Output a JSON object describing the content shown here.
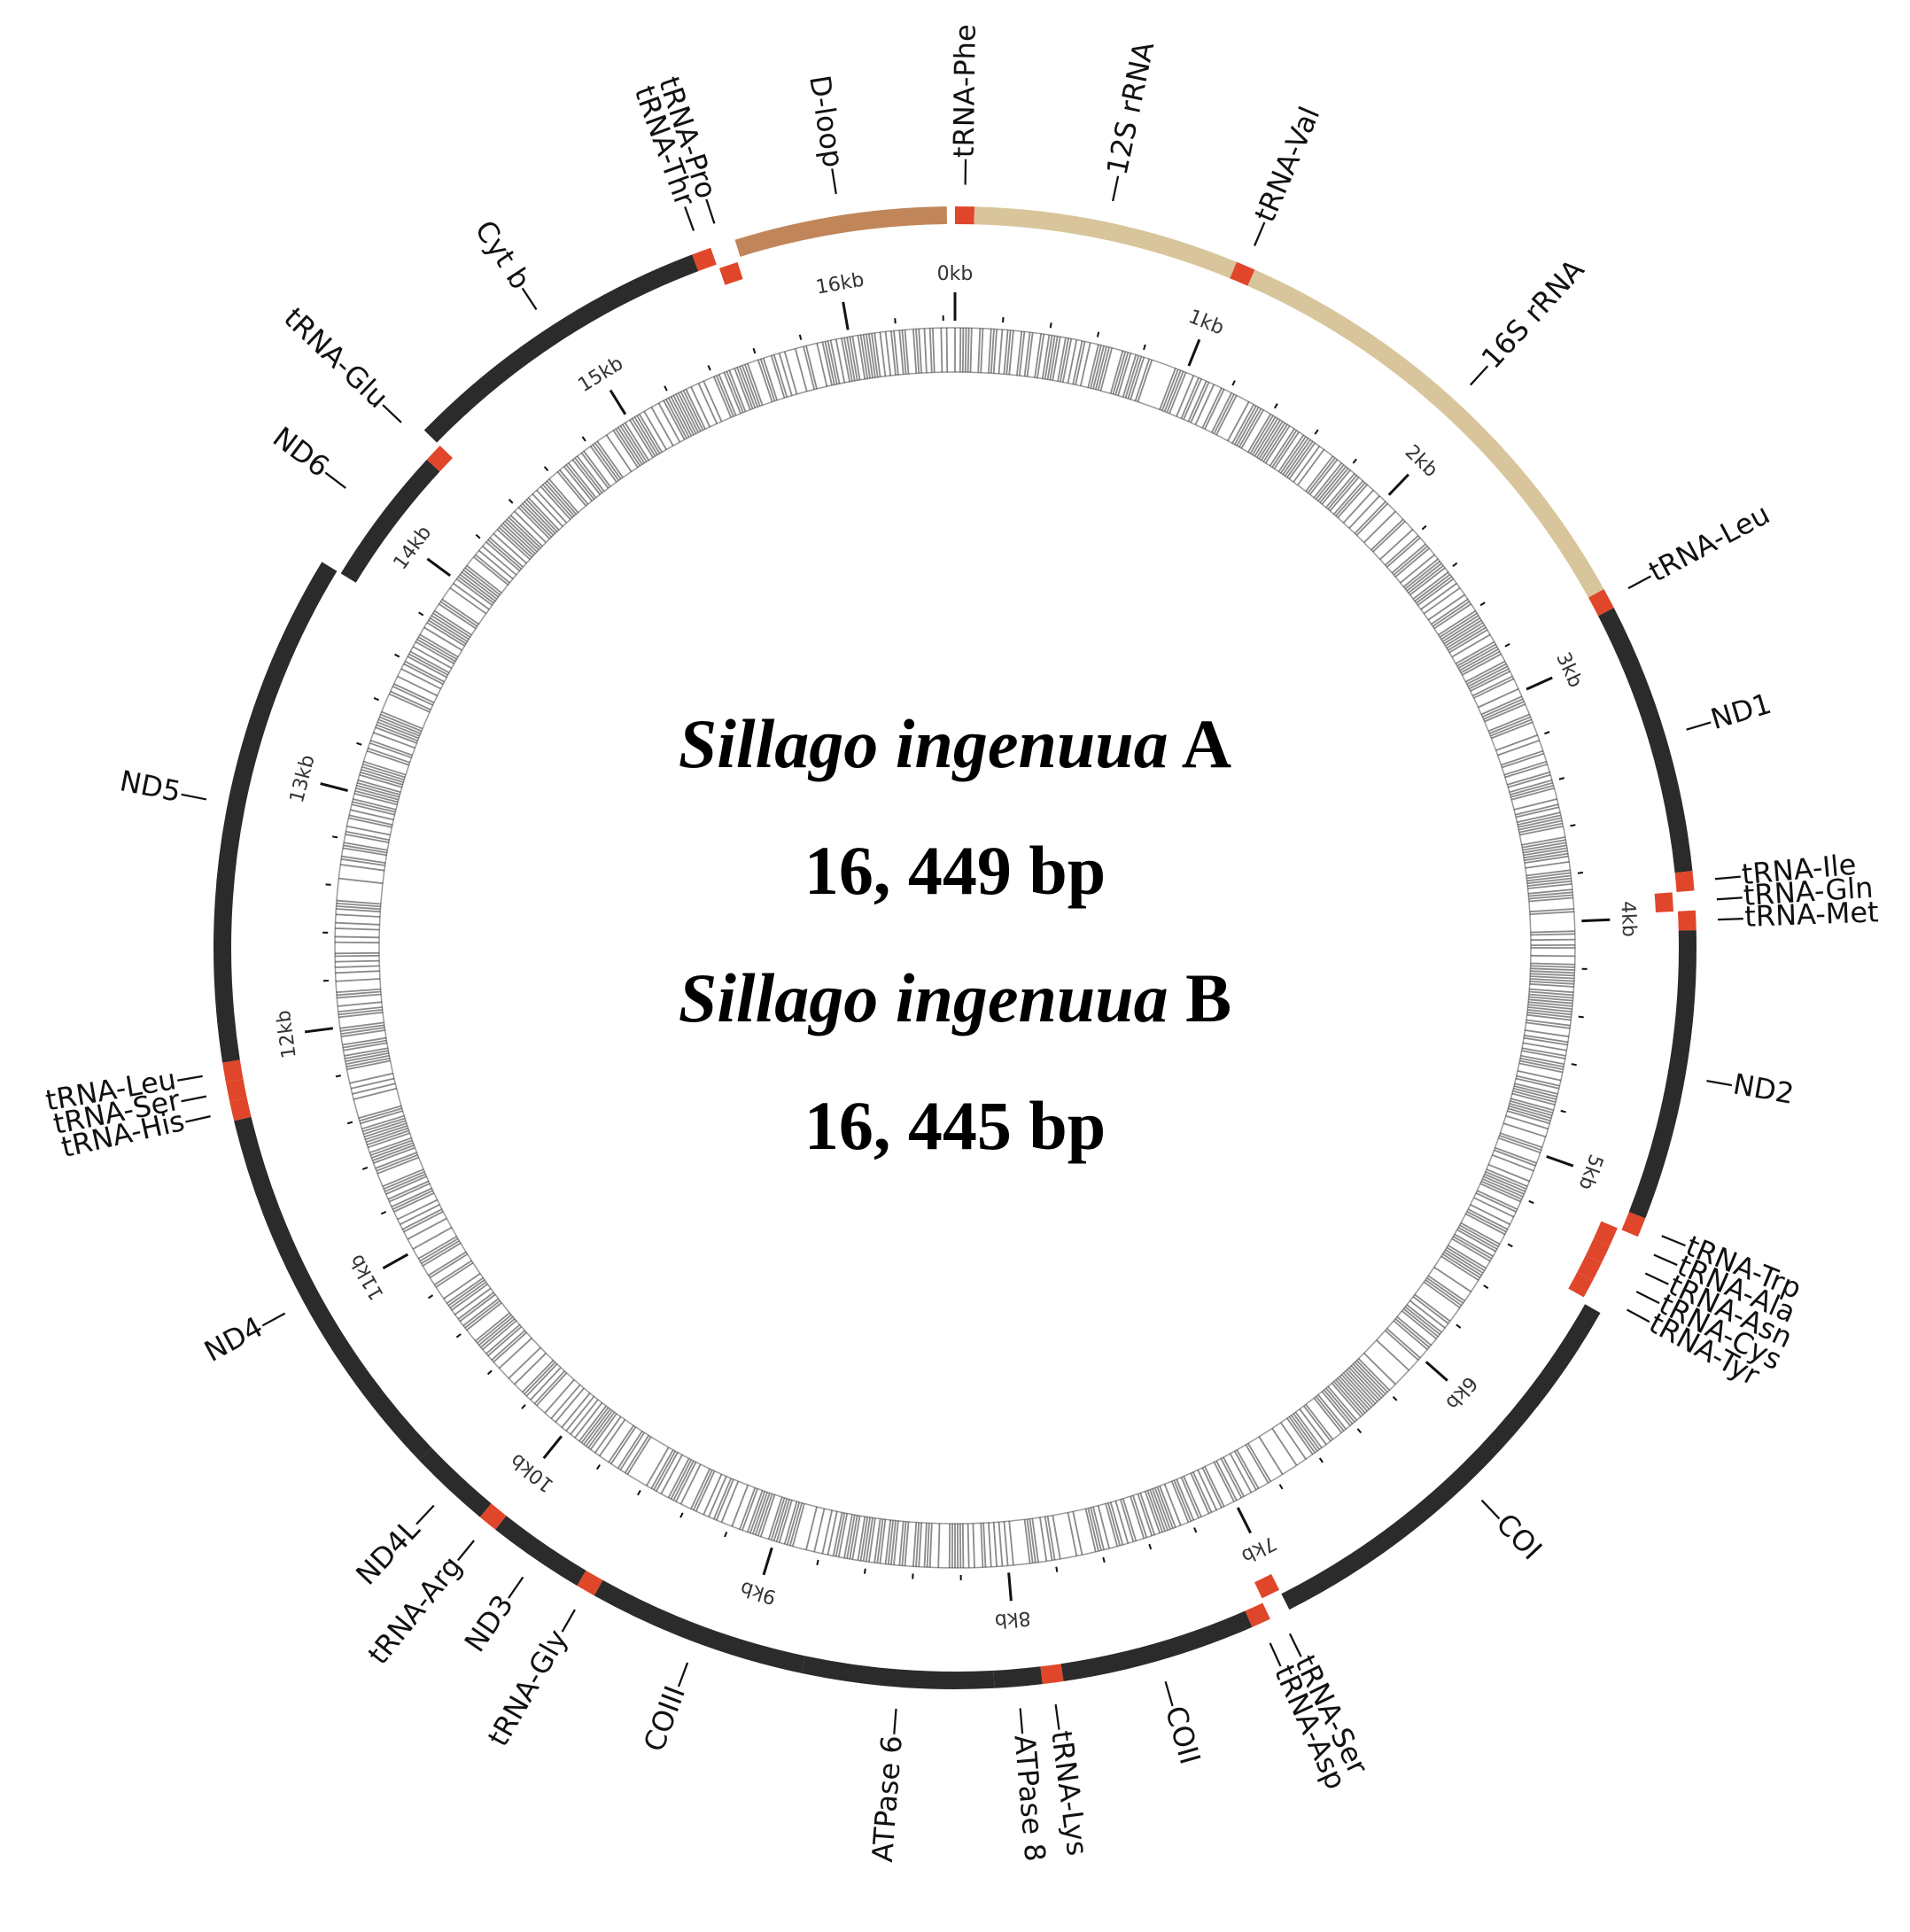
{
  "center": {
    "species_a": "Sillago ingenuua",
    "species_a_suffix": "A",
    "length_a": "16, 449 bp",
    "species_b": "Sillago ingenuua",
    "species_b_suffix": "B",
    "length_b": "16, 445 bp"
  },
  "genome_length_bp": 16449,
  "colors": {
    "protein_coding": "#2b2b2b",
    "trna": "#e0462a",
    "rrna": "#d8c59b",
    "dloop": "#c0865a",
    "gc_track_dark": "#2a2a2a"
  },
  "scale_ticks": [
    "0kb",
    "1kb",
    "2kb",
    "3kb",
    "4kb",
    "5kb",
    "6kb",
    "7kb",
    "8kb",
    "9kb",
    "10kb",
    "11kb",
    "12kb",
    "13kb",
    "14kb",
    "15kb",
    "16kb"
  ],
  "genes": [
    {
      "name": "tRNA-Phe",
      "type": "trna",
      "start": 0,
      "end": 69,
      "label": "tRNA-Phe"
    },
    {
      "name": "12S rRNA",
      "type": "rrna",
      "start": 69,
      "end": 1020,
      "label": "12S rRNA"
    },
    {
      "name": "tRNA-Val",
      "type": "trna",
      "start": 1020,
      "end": 1090,
      "label": "tRNA-Val"
    },
    {
      "name": "16S rRNA",
      "type": "rrna",
      "start": 1090,
      "end": 2790,
      "label": "16S rRNA"
    },
    {
      "name": "tRNA-Leu",
      "type": "trna",
      "start": 2790,
      "end": 2865,
      "label": "tRNA-Leu"
    },
    {
      "name": "ND1",
      "type": "protein",
      "start": 2865,
      "end": 3840,
      "label": "ND1"
    },
    {
      "name": "tRNA-Ile",
      "type": "trna",
      "start": 3840,
      "end": 3910,
      "label": "tRNA-Ile"
    },
    {
      "name": "tRNA-Gln",
      "type": "trna",
      "start": 3910,
      "end": 3980,
      "label": "tRNA-Gln",
      "inner": true
    },
    {
      "name": "tRNA-Met",
      "type": "trna",
      "start": 3980,
      "end": 4050,
      "label": "tRNA-Met"
    },
    {
      "name": "ND2",
      "type": "protein",
      "start": 4050,
      "end": 5090,
      "label": "ND2"
    },
    {
      "name": "tRNA-Trp",
      "type": "trna",
      "start": 5090,
      "end": 5160,
      "label": "tRNA-Trp"
    },
    {
      "name": "tRNA-Ala",
      "type": "trna",
      "start": 5160,
      "end": 5230,
      "label": "tRNA-Ala",
      "inner": true
    },
    {
      "name": "tRNA-Asn",
      "type": "trna",
      "start": 5230,
      "end": 5300,
      "label": "tRNA-Asn",
      "inner": true
    },
    {
      "name": "tRNA-Cys",
      "type": "trna",
      "start": 5300,
      "end": 5370,
      "label": "tRNA-Cys",
      "inner": true
    },
    {
      "name": "tRNA-Tyr",
      "type": "trna",
      "start": 5370,
      "end": 5440,
      "label": "tRNA-Tyr",
      "inner": true
    },
    {
      "name": "COI",
      "type": "protein",
      "start": 5460,
      "end": 7000,
      "label": "COI"
    },
    {
      "name": "tRNA-Ser",
      "type": "trna",
      "start": 7000,
      "end": 7070,
      "label": "tRNA-Ser",
      "inner": true
    },
    {
      "name": "tRNA-Asp",
      "type": "trna",
      "start": 7075,
      "end": 7145,
      "label": "tRNA-Asp"
    },
    {
      "name": "COII",
      "type": "protein",
      "start": 7145,
      "end": 7840,
      "label": "COII"
    },
    {
      "name": "tRNA-Lys",
      "type": "trna",
      "start": 7840,
      "end": 7915,
      "label": "tRNA-Lys"
    },
    {
      "name": "ATPase 8",
      "type": "protein",
      "start": 7915,
      "end": 8085,
      "label": "ATPase 8"
    },
    {
      "name": "ATPase 6",
      "type": "protein",
      "start": 8085,
      "end": 8770,
      "label": "ATPase 6"
    },
    {
      "name": "COIII",
      "type": "protein",
      "start": 8770,
      "end": 9555,
      "label": "COIII"
    },
    {
      "name": "tRNA-Gly",
      "type": "trna",
      "start": 9555,
      "end": 9625,
      "label": "tRNA-Gly"
    },
    {
      "name": "ND3",
      "type": "protein",
      "start": 9625,
      "end": 9975,
      "label": "ND3"
    },
    {
      "name": "tRNA-Arg",
      "type": "trna",
      "start": 9975,
      "end": 10045,
      "label": "tRNA-Arg"
    },
    {
      "name": "ND4L",
      "type": "protein",
      "start": 10045,
      "end": 10340,
      "label": "ND4L"
    },
    {
      "name": "ND4",
      "type": "protein",
      "start": 10340,
      "end": 11720,
      "label": "ND4"
    },
    {
      "name": "tRNA-His",
      "type": "trna",
      "start": 11720,
      "end": 11790,
      "label": "tRNA-His"
    },
    {
      "name": "tRNA-Ser2",
      "type": "trna",
      "start": 11790,
      "end": 11860,
      "label": "tRNA-Ser"
    },
    {
      "name": "tRNA-Leu2",
      "type": "trna",
      "start": 11860,
      "end": 11930,
      "label": "tRNA-Leu"
    },
    {
      "name": "ND5",
      "type": "protein",
      "start": 11930,
      "end": 13770,
      "label": "ND5"
    },
    {
      "name": "ND6",
      "type": "protein",
      "start": 13770,
      "end": 14290,
      "label": "ND6",
      "inner": true
    },
    {
      "name": "tRNA-Glu",
      "type": "trna",
      "start": 14290,
      "end": 14360,
      "label": "tRNA-Glu",
      "inner": true
    },
    {
      "name": "Cyt b",
      "type": "protein",
      "start": 14360,
      "end": 15500,
      "label": "Cyt b"
    },
    {
      "name": "tRNA-Thr",
      "type": "trna",
      "start": 15500,
      "end": 15570,
      "label": "tRNA-Thr"
    },
    {
      "name": "tRNA-Pro",
      "type": "trna",
      "start": 15575,
      "end": 15645,
      "label": "tRNA-Pro",
      "inner": true
    },
    {
      "name": "D-loop",
      "type": "dloop",
      "start": 15660,
      "end": 16420,
      "label": "D-loop"
    }
  ]
}
